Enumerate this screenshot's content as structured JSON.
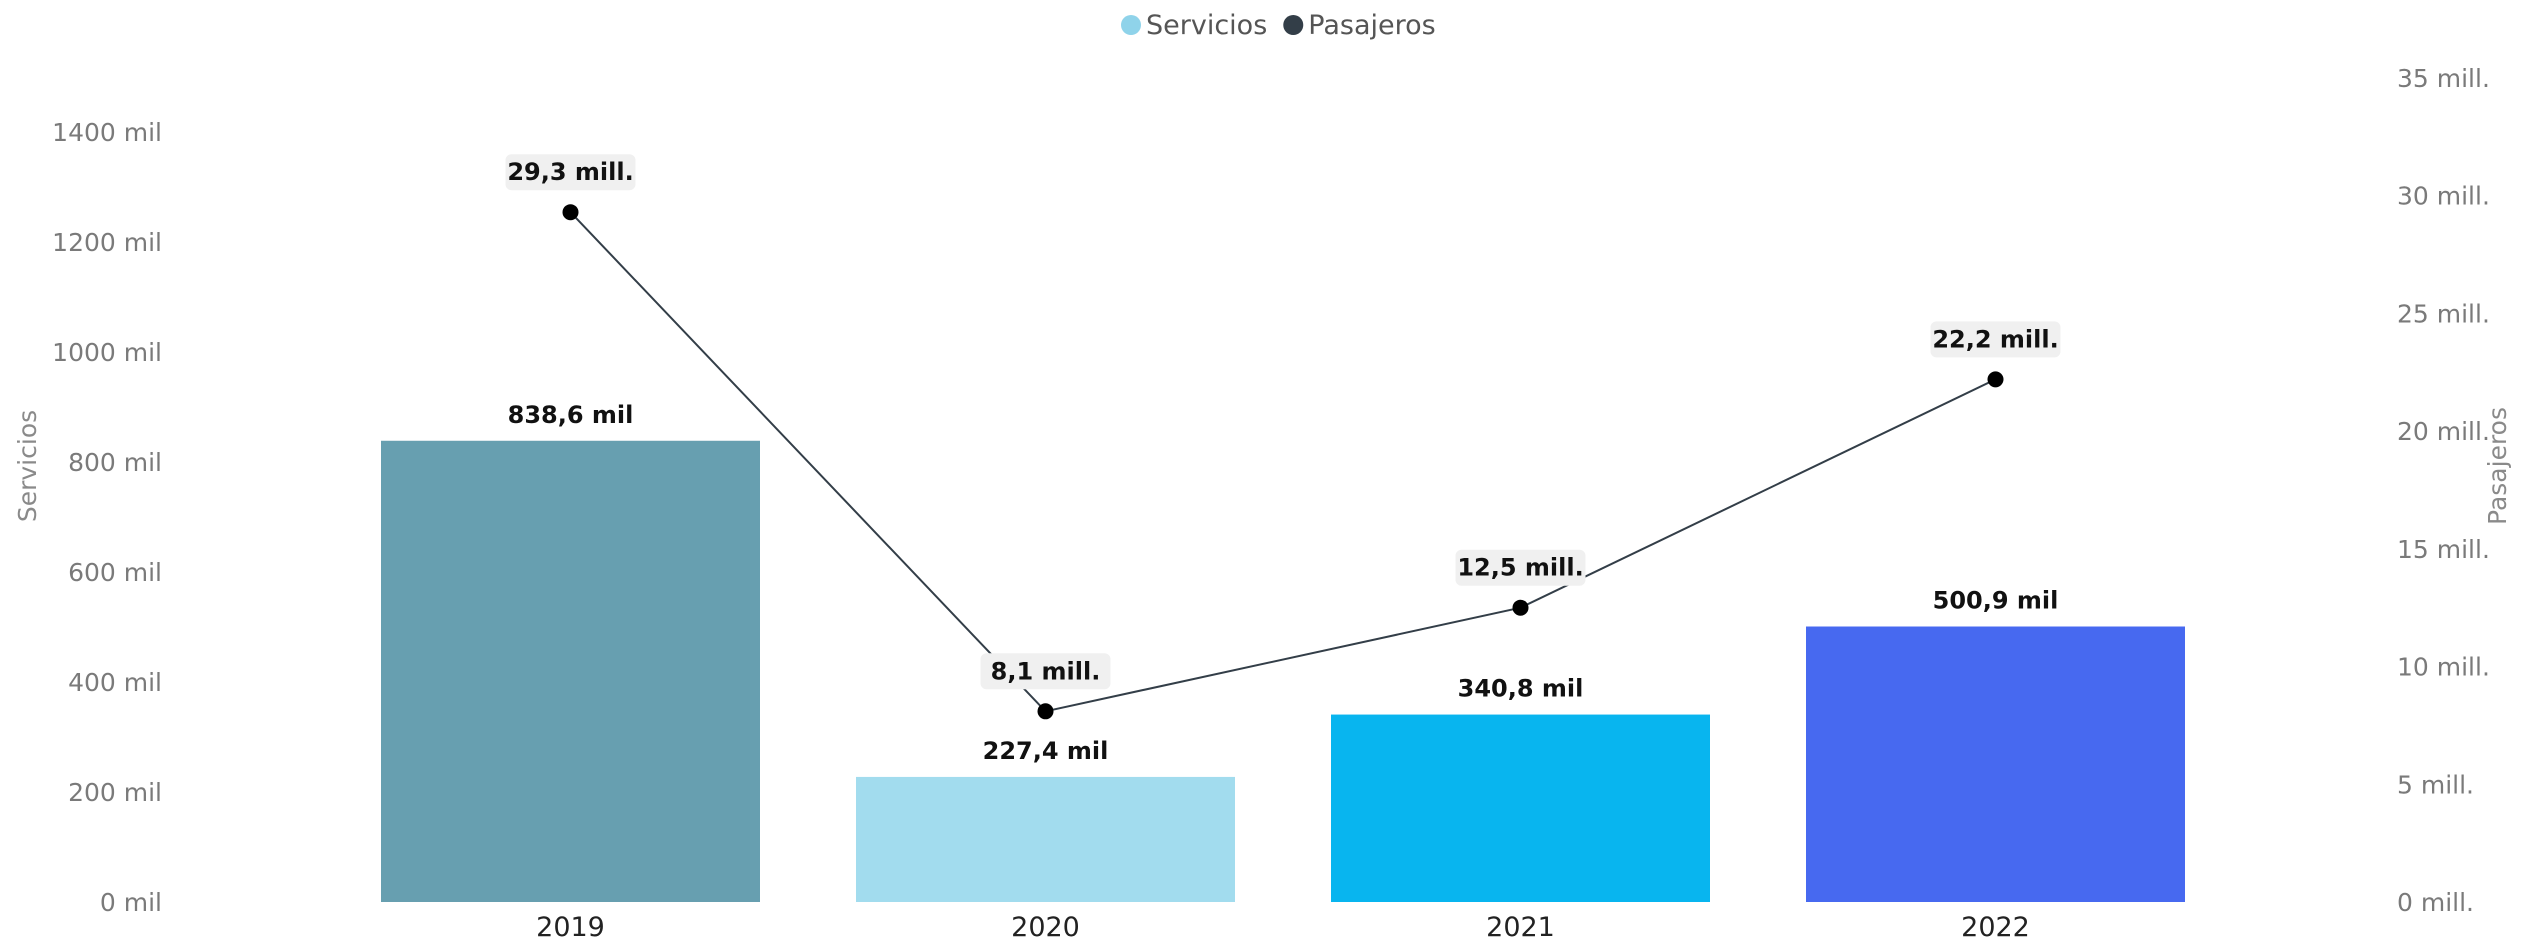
{
  "chart_data": {
    "type": "bar",
    "categories": [
      "2019",
      "2020",
      "2021",
      "2022"
    ],
    "legend": {
      "position": "top-center",
      "items": [
        {
          "name": "Servicios",
          "color": "#8fd3ea"
        },
        {
          "name": "Pasajeros",
          "color": "#333e48"
        }
      ]
    },
    "series": [
      {
        "name": "Servicios",
        "type": "bar",
        "axis": "left",
        "values": [
          838600,
          227400,
          340800,
          500900
        ],
        "labels": [
          "838,6 mil",
          "227,4 mil",
          "340,8 mil",
          "500,9 mil"
        ],
        "colors": [
          "#679fb0",
          "#a2dcee",
          "#08b5ef",
          "#4769f0"
        ]
      },
      {
        "name": "Pasajeros",
        "type": "line",
        "axis": "right",
        "values": [
          29300000,
          8100000,
          12500000,
          22200000
        ],
        "labels": [
          "29,3 mill.",
          "8,1 mill.",
          "12,5 mill.",
          "22,2 mill."
        ],
        "color": "#333e48",
        "marker_color": "#000000"
      }
    ],
    "y_left": {
      "label": "Servicios",
      "range": [
        0,
        1400000
      ],
      "ticks": [
        0,
        200000,
        400000,
        600000,
        800000,
        1000000,
        1200000,
        1400000
      ],
      "tick_labels": [
        "0 mil",
        "200 mil",
        "400 mil",
        "600 mil",
        "800 mil",
        "1000 mil",
        "1200 mil",
        "1400 mil"
      ]
    },
    "y_right": {
      "label": "Pasajeros",
      "range": [
        0,
        35000000
      ],
      "ticks": [
        0,
        5000000,
        10000000,
        15000000,
        20000000,
        25000000,
        30000000,
        35000000
      ],
      "tick_labels": [
        "0 mill.",
        "5 mill.",
        "10 mill.",
        "15 mill.",
        "20 mill.",
        "25 mill.",
        "30 mill.",
        "35 mill."
      ]
    },
    "grid": false
  }
}
